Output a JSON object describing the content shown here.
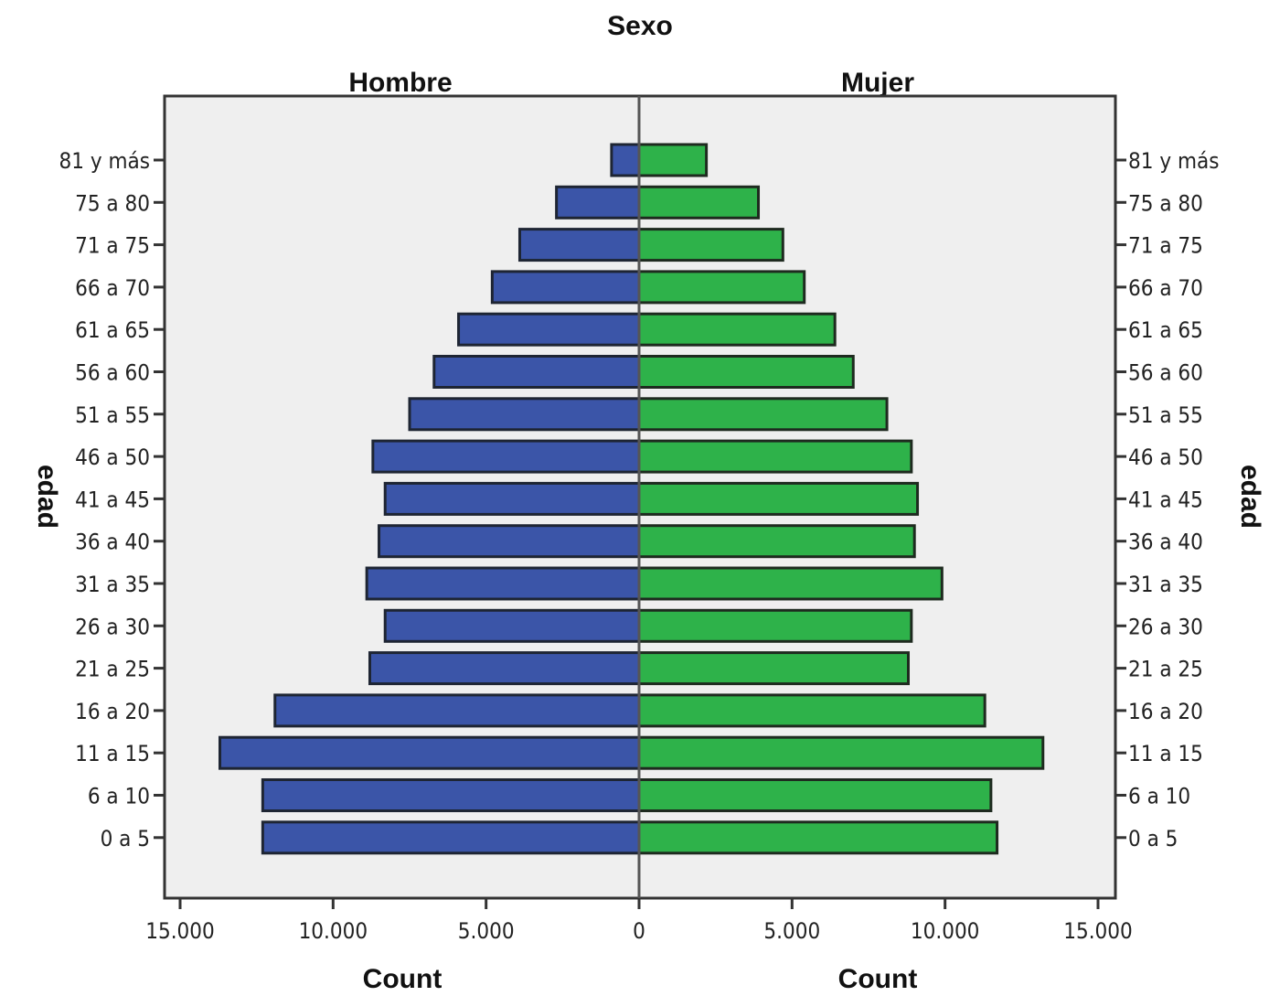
{
  "chart_data": {
    "type": "bar",
    "title": "Sexo",
    "panels": [
      "Hombre",
      "Mujer"
    ],
    "ylabel": "edad",
    "xlabel": "Count",
    "categories": [
      "81 y más",
      "75 a 80",
      "71 a 75",
      "66 a 70",
      "61 a 65",
      "56 a 60",
      "51 a 55",
      "46 a 50",
      "41 a 45",
      "36 a 40",
      "31 a 35",
      "26 a 30",
      "21 a 25",
      "16 a 20",
      "11 a 15",
      "6 a 10",
      "0 a 5"
    ],
    "series": [
      {
        "name": "Hombre",
        "color": "#3b55a8",
        "values": [
          900,
          2700,
          3900,
          4800,
          5900,
          6700,
          7500,
          8700,
          8300,
          8500,
          8900,
          8300,
          8800,
          11900,
          13700,
          12300,
          12300
        ]
      },
      {
        "name": "Mujer",
        "color": "#2eb24a",
        "values": [
          2200,
          3900,
          4700,
          5400,
          6400,
          7000,
          8100,
          8900,
          9100,
          9000,
          9900,
          8900,
          8800,
          11300,
          13200,
          11500,
          11700
        ]
      }
    ],
    "xlim": [
      0,
      15000
    ],
    "xticks": [
      "15.000",
      "10.000",
      "5.000",
      "0",
      "5.000",
      "10.000",
      "15.000"
    ],
    "plot_background": "#efefef"
  }
}
